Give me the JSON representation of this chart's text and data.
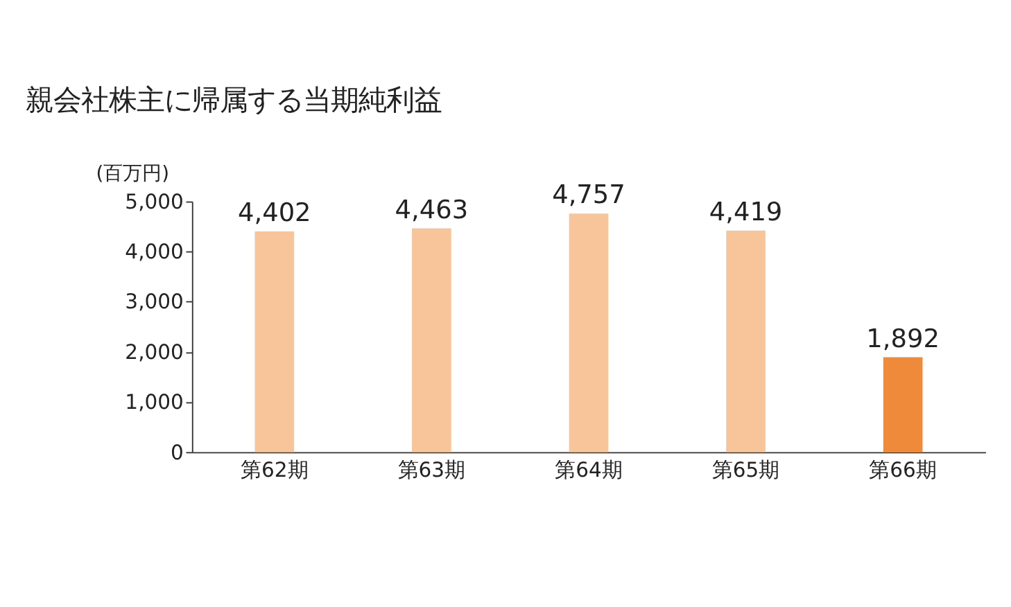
{
  "chart_data": {
    "type": "bar",
    "title": "親会社株主に帰属する当期純利益",
    "ylabel": "(百万円)",
    "categories": [
      "第62期",
      "第63期",
      "第64期",
      "第65期",
      "第66期"
    ],
    "values": [
      4402,
      4463,
      4757,
      4419,
      1892
    ],
    "colors": [
      "#f8c59a",
      "#f8c59a",
      "#f8c59a",
      "#f8c59a",
      "#ef8a3a"
    ],
    "value_labels": [
      "4,402",
      "4,463",
      "4,757",
      "4,419",
      "1,892"
    ],
    "ylim": [
      0,
      5000
    ],
    "yticks": [
      0,
      {
        "value": 1000,
        "label": "1,000"
      },
      {
        "value": 2000,
        "label": "2,000"
      },
      {
        "value": 3000,
        "label": "3,000"
      },
      {
        "value": 4000,
        "label": "4,000"
      },
      {
        "value": 5000,
        "label": "5,000"
      }
    ],
    "grid": false
  }
}
